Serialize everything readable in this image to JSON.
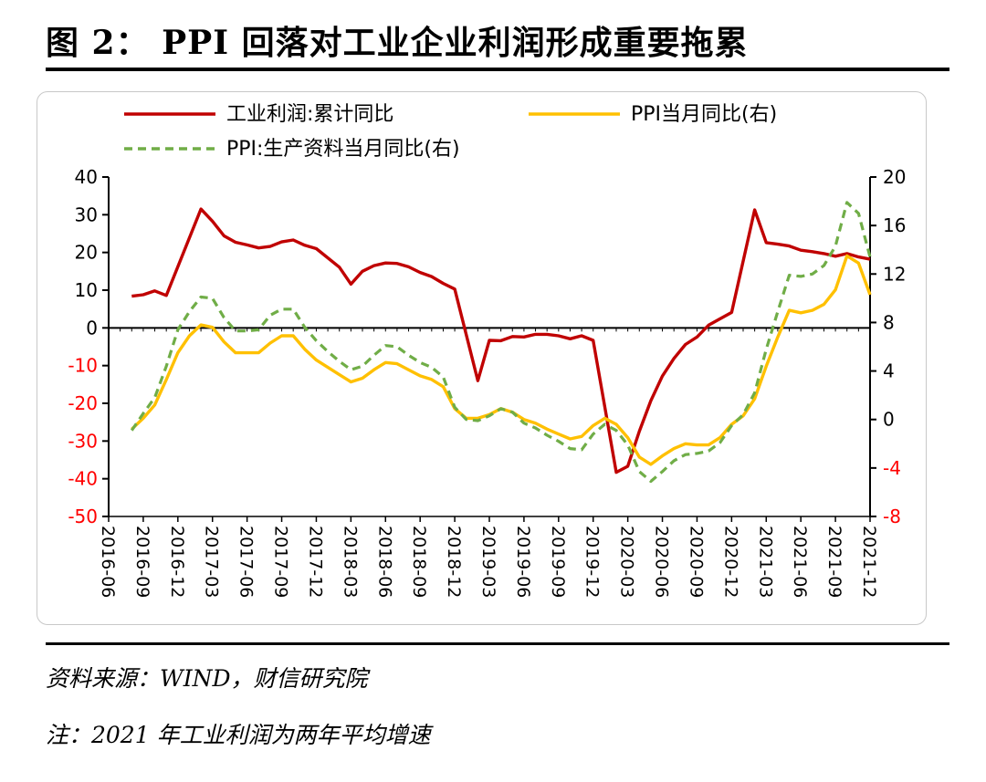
{
  "title": "图 2：  PPI 回落对工业企业利润形成重要拖累",
  "source": "资料来源：WIND，财信研究院",
  "note": "注：2021 年工业利润为两年平均增速",
  "colors": {
    "profit": "#c00000",
    "ppi": "#ffc000",
    "ppi_production": "#70ad47",
    "right_axis_negative": "#ff0000"
  },
  "chart_data": {
    "type": "line",
    "title": "",
    "legend": [
      "工业利润:累计同比",
      "PPI当月同比(右)",
      "PPI:生产资料当月同比(右)"
    ],
    "x_tick_labels": [
      "2016-06",
      "2016-09",
      "2016-12",
      "2017-03",
      "2017-06",
      "2017-09",
      "2017-12",
      "2018-03",
      "2018-06",
      "2018-09",
      "2018-12",
      "2019-03",
      "2019-06",
      "2019-09",
      "2019-12",
      "2020-03",
      "2020-06",
      "2020-09",
      "2020-12",
      "2021-03",
      "2021-06",
      "2021-09",
      "2021-12"
    ],
    "y_left": {
      "range": [
        -50,
        40
      ],
      "ticks": [
        40,
        30,
        20,
        10,
        0,
        -10,
        -20,
        -30,
        -40,
        -50
      ]
    },
    "y_right": {
      "range": [
        -8,
        20
      ],
      "ticks": [
        20,
        16,
        12,
        8,
        4,
        0,
        -4,
        -8
      ]
    },
    "series": [
      {
        "name": "工业利润:累计同比",
        "axis": "left",
        "color": "#c00000",
        "dash": "solid",
        "points": [
          [
            "2016-08",
            8.4
          ],
          [
            "2016-09",
            8.8
          ],
          [
            "2016-10",
            9.8
          ],
          [
            "2016-11",
            8.6
          ],
          [
            "2017-02",
            31.5
          ],
          [
            "2017-03",
            28.3
          ],
          [
            "2017-04",
            24.4
          ],
          [
            "2017-05",
            22.7
          ],
          [
            "2017-06",
            22.0
          ],
          [
            "2017-07",
            21.2
          ],
          [
            "2017-08",
            21.6
          ],
          [
            "2017-09",
            22.8
          ],
          [
            "2017-10",
            23.3
          ],
          [
            "2017-11",
            21.9
          ],
          [
            "2017-12",
            21.0
          ],
          [
            "2018-02",
            16.1
          ],
          [
            "2018-03",
            11.6
          ],
          [
            "2018-04",
            15.0
          ],
          [
            "2018-05",
            16.5
          ],
          [
            "2018-06",
            17.2
          ],
          [
            "2018-07",
            17.1
          ],
          [
            "2018-08",
            16.2
          ],
          [
            "2018-09",
            14.7
          ],
          [
            "2018-10",
            13.6
          ],
          [
            "2018-11",
            11.8
          ],
          [
            "2018-12",
            10.3
          ],
          [
            "2019-02",
            -14.0
          ],
          [
            "2019-03",
            -3.3
          ],
          [
            "2019-04",
            -3.4
          ],
          [
            "2019-05",
            -2.3
          ],
          [
            "2019-06",
            -2.4
          ],
          [
            "2019-07",
            -1.7
          ],
          [
            "2019-08",
            -1.7
          ],
          [
            "2019-09",
            -2.1
          ],
          [
            "2019-10",
            -2.9
          ],
          [
            "2019-11",
            -2.1
          ],
          [
            "2019-12",
            -3.3
          ],
          [
            "2020-02",
            -38.3
          ],
          [
            "2020-03",
            -36.7
          ],
          [
            "2020-04",
            -27.4
          ],
          [
            "2020-05",
            -19.3
          ],
          [
            "2020-06",
            -12.8
          ],
          [
            "2020-07",
            -8.1
          ],
          [
            "2020-08",
            -4.4
          ],
          [
            "2020-09",
            -2.4
          ],
          [
            "2020-10",
            0.7
          ],
          [
            "2020-11",
            2.4
          ],
          [
            "2020-12",
            4.1
          ],
          [
            "2021-02",
            31.3
          ],
          [
            "2021-03",
            22.6
          ],
          [
            "2021-04",
            22.2
          ],
          [
            "2021-05",
            21.7
          ],
          [
            "2021-06",
            20.6
          ],
          [
            "2021-07",
            20.2
          ],
          [
            "2021-08",
            19.7
          ],
          [
            "2021-09",
            19.0
          ],
          [
            "2021-10",
            19.7
          ],
          [
            "2021-11",
            18.8
          ],
          [
            "2021-12",
            18.2
          ]
        ]
      },
      {
        "name": "PPI当月同比(右)",
        "axis": "right",
        "color": "#ffc000",
        "dash": "solid",
        "points": [
          [
            "2016-08",
            -0.8
          ],
          [
            "2016-09",
            0.1
          ],
          [
            "2016-10",
            1.2
          ],
          [
            "2016-11",
            3.3
          ],
          [
            "2016-12",
            5.5
          ],
          [
            "2017-01",
            6.9
          ],
          [
            "2017-02",
            7.8
          ],
          [
            "2017-03",
            7.6
          ],
          [
            "2017-04",
            6.4
          ],
          [
            "2017-05",
            5.5
          ],
          [
            "2017-06",
            5.5
          ],
          [
            "2017-07",
            5.5
          ],
          [
            "2017-08",
            6.3
          ],
          [
            "2017-09",
            6.9
          ],
          [
            "2017-10",
            6.9
          ],
          [
            "2017-11",
            5.8
          ],
          [
            "2017-12",
            4.9
          ],
          [
            "2018-01",
            4.3
          ],
          [
            "2018-02",
            3.7
          ],
          [
            "2018-03",
            3.1
          ],
          [
            "2018-04",
            3.4
          ],
          [
            "2018-05",
            4.1
          ],
          [
            "2018-06",
            4.7
          ],
          [
            "2018-07",
            4.6
          ],
          [
            "2018-08",
            4.1
          ],
          [
            "2018-09",
            3.6
          ],
          [
            "2018-10",
            3.3
          ],
          [
            "2018-11",
            2.7
          ],
          [
            "2018-12",
            0.9
          ],
          [
            "2019-01",
            0.1
          ],
          [
            "2019-02",
            0.1
          ],
          [
            "2019-03",
            0.4
          ],
          [
            "2019-04",
            0.9
          ],
          [
            "2019-05",
            0.6
          ],
          [
            "2019-06",
            0.0
          ],
          [
            "2019-07",
            -0.3
          ],
          [
            "2019-08",
            -0.8
          ],
          [
            "2019-09",
            -1.2
          ],
          [
            "2019-10",
            -1.6
          ],
          [
            "2019-11",
            -1.4
          ],
          [
            "2019-12",
            -0.5
          ],
          [
            "2020-01",
            0.1
          ],
          [
            "2020-02",
            -0.4
          ],
          [
            "2020-03",
            -1.5
          ],
          [
            "2020-04",
            -3.1
          ],
          [
            "2020-05",
            -3.7
          ],
          [
            "2020-06",
            -3.0
          ],
          [
            "2020-07",
            -2.4
          ],
          [
            "2020-08",
            -2.0
          ],
          [
            "2020-09",
            -2.1
          ],
          [
            "2020-10",
            -2.1
          ],
          [
            "2020-11",
            -1.5
          ],
          [
            "2020-12",
            -0.4
          ],
          [
            "2021-01",
            0.3
          ],
          [
            "2021-02",
            1.7
          ],
          [
            "2021-03",
            4.4
          ],
          [
            "2021-04",
            6.8
          ],
          [
            "2021-05",
            9.0
          ],
          [
            "2021-06",
            8.8
          ],
          [
            "2021-07",
            9.0
          ],
          [
            "2021-08",
            9.5
          ],
          [
            "2021-09",
            10.7
          ],
          [
            "2021-10",
            13.5
          ],
          [
            "2021-11",
            12.9
          ],
          [
            "2021-12",
            10.3
          ]
        ]
      },
      {
        "name": "PPI:生产资料当月同比(右)",
        "axis": "right",
        "color": "#70ad47",
        "dash": "dashed",
        "points": [
          [
            "2016-08",
            -0.9
          ],
          [
            "2016-09",
            0.5
          ],
          [
            "2016-10",
            1.8
          ],
          [
            "2016-11",
            4.4
          ],
          [
            "2016-12",
            7.4
          ],
          [
            "2017-01",
            8.9
          ],
          [
            "2017-02",
            10.1
          ],
          [
            "2017-03",
            10.0
          ],
          [
            "2017-04",
            8.4
          ],
          [
            "2017-05",
            7.3
          ],
          [
            "2017-06",
            7.3
          ],
          [
            "2017-07",
            7.4
          ],
          [
            "2017-08",
            8.6
          ],
          [
            "2017-09",
            9.1
          ],
          [
            "2017-10",
            9.1
          ],
          [
            "2017-11",
            7.6
          ],
          [
            "2017-12",
            6.5
          ],
          [
            "2018-01",
            5.6
          ],
          [
            "2018-02",
            4.8
          ],
          [
            "2018-03",
            4.1
          ],
          [
            "2018-04",
            4.4
          ],
          [
            "2018-05",
            5.3
          ],
          [
            "2018-06",
            6.1
          ],
          [
            "2018-07",
            6.0
          ],
          [
            "2018-08",
            5.3
          ],
          [
            "2018-09",
            4.7
          ],
          [
            "2018-10",
            4.3
          ],
          [
            "2018-11",
            3.5
          ],
          [
            "2018-12",
            1.0
          ],
          [
            "2019-01",
            0.0
          ],
          [
            "2019-02",
            -0.1
          ],
          [
            "2019-03",
            0.3
          ],
          [
            "2019-04",
            0.9
          ],
          [
            "2019-05",
            0.6
          ],
          [
            "2019-06",
            -0.3
          ],
          [
            "2019-07",
            -0.7
          ],
          [
            "2019-08",
            -1.3
          ],
          [
            "2019-09",
            -1.8
          ],
          [
            "2019-10",
            -2.4
          ],
          [
            "2019-11",
            -2.5
          ],
          [
            "2019-12",
            -1.2
          ],
          [
            "2020-01",
            -0.4
          ],
          [
            "2020-02",
            -0.9
          ],
          [
            "2020-03",
            -2.1
          ],
          [
            "2020-04",
            -4.3
          ],
          [
            "2020-05",
            -5.1
          ],
          [
            "2020-06",
            -4.3
          ],
          [
            "2020-07",
            -3.4
          ],
          [
            "2020-08",
            -2.9
          ],
          [
            "2020-09",
            -2.8
          ],
          [
            "2020-10",
            -2.6
          ],
          [
            "2020-11",
            -1.9
          ],
          [
            "2020-12",
            -0.5
          ],
          [
            "2021-01",
            0.4
          ],
          [
            "2021-02",
            2.2
          ],
          [
            "2021-03",
            5.8
          ],
          [
            "2021-04",
            8.9
          ],
          [
            "2021-05",
            11.9
          ],
          [
            "2021-06",
            11.8
          ],
          [
            "2021-07",
            12.0
          ],
          [
            "2021-08",
            12.7
          ],
          [
            "2021-09",
            14.3
          ],
          [
            "2021-10",
            17.9
          ],
          [
            "2021-11",
            17.0
          ],
          [
            "2021-12",
            13.4
          ]
        ]
      }
    ],
    "grid": false,
    "legend_position": "top"
  }
}
